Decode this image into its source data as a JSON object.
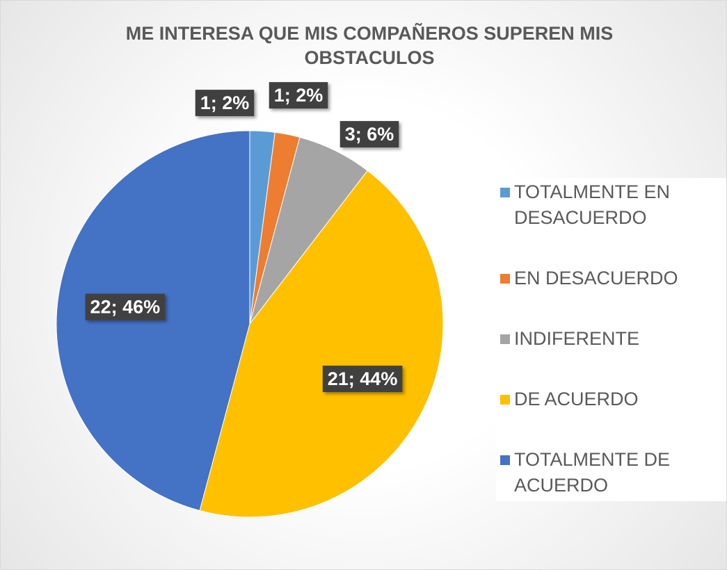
{
  "chart_data": {
    "type": "pie",
    "title": "ME INTERESA QUE MIS COMPAÑEROS SUPEREN MIS OBSTACULOS",
    "categories": [
      "TOTALMENTE EN DESACUERDO",
      "EN DESACUERDO",
      "INDIFERENTE",
      "DE ACUERDO",
      "TOTALMENTE DE ACUERDO"
    ],
    "values": [
      1,
      1,
      3,
      21,
      22
    ],
    "value_labels": [
      "1; 2%",
      "1; 2%",
      "3; 6%",
      "21; 44%",
      "22; 46%"
    ],
    "colors": [
      "#5b9bd5",
      "#ed7d31",
      "#a5a5a5",
      "#ffc000",
      "#4472c4"
    ],
    "legend": "right"
  }
}
